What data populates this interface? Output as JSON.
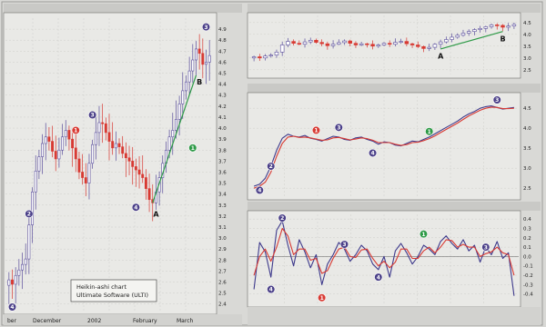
{
  "accent_colors": {
    "up": "#5a4e9c",
    "down": "#d83a33",
    "trendline": "#2e9a47",
    "label_bg": "#4a3f88",
    "label_red": "#d83a33",
    "label_green": "#2e9a47"
  },
  "chart_data": [
    {
      "id": "left",
      "type": "candlestick",
      "legend_box": [
        "Heikin-ashi chart",
        "Ultimate Software (ULTI)"
      ],
      "x_labels": [
        "ber",
        "December",
        "2002",
        "February",
        "March"
      ],
      "y_ticks": [
        2.4,
        2.5,
        2.6,
        2.7,
        2.8,
        2.9,
        3.0,
        3.1,
        3.2,
        3.3,
        3.4,
        3.5,
        3.6,
        3.7,
        3.8,
        3.9,
        4.0,
        4.1,
        4.2,
        4.3,
        4.4,
        4.5,
        4.6,
        4.7,
        4.8,
        4.9
      ],
      "ylim": [
        2.34,
        5.0
      ],
      "grid": true,
      "closes": [
        2.62,
        2.58,
        2.66,
        2.71,
        2.76,
        2.81,
        3.12,
        3.42,
        3.61,
        3.74,
        3.86,
        3.92,
        3.88,
        3.79,
        3.72,
        3.8,
        3.92,
        3.98,
        3.9,
        3.82,
        3.72,
        3.6,
        3.55,
        3.5,
        3.68,
        3.85,
        3.96,
        4.05,
        4.04,
        3.96,
        3.88,
        3.82,
        3.86,
        3.83,
        3.77,
        3.73,
        3.7,
        3.65,
        3.62,
        3.58,
        3.55,
        3.45,
        3.35,
        3.32,
        3.42,
        3.55,
        3.68,
        3.8,
        3.92,
        3.98,
        4.08,
        4.22,
        4.34,
        4.42,
        4.52,
        4.62,
        4.72,
        4.68,
        4.58,
        4.6,
        4.66
      ],
      "markers": [
        {
          "label": "4",
          "color": "purple",
          "i": 1,
          "v": 2.33
        },
        {
          "label": "2",
          "color": "purple",
          "i": 6,
          "v": 3.22
        },
        {
          "label": "1",
          "color": "red",
          "i": 20,
          "v": 3.98
        },
        {
          "label": "3",
          "color": "purple",
          "i": 25,
          "v": 4.12
        },
        {
          "label": "4",
          "color": "purple",
          "i": 38,
          "v": 3.28
        },
        {
          "label": "3",
          "color": "purple",
          "i": 59,
          "v": 4.92
        },
        {
          "label": "1",
          "color": "green",
          "i": 55,
          "v": 3.82
        }
      ],
      "trendline": {
        "from": {
          "i": 43,
          "v": 3.32
        },
        "to": {
          "i": 56,
          "v": 4.48
        }
      },
      "text_labels": [
        {
          "text": "A",
          "i": 44,
          "v": 3.22
        },
        {
          "text": "B",
          "i": 57,
          "v": 4.42
        }
      ]
    },
    {
      "id": "top-right",
      "type": "candlestick",
      "y_ticks": [
        2.5,
        3.0,
        3.5,
        4.0,
        4.5
      ],
      "ylim": [
        2.3,
        4.8
      ],
      "grid": true,
      "closes": [
        3.05,
        3.0,
        3.08,
        3.12,
        3.25,
        3.55,
        3.7,
        3.62,
        3.58,
        3.68,
        3.75,
        3.66,
        3.6,
        3.52,
        3.58,
        3.65,
        3.72,
        3.62,
        3.55,
        3.6,
        3.58,
        3.5,
        3.55,
        3.62,
        3.58,
        3.66,
        3.7,
        3.6,
        3.55,
        3.48,
        3.4,
        3.45,
        3.58,
        3.68,
        3.78,
        3.88,
        3.96,
        4.05,
        4.12,
        4.2,
        4.25,
        4.32,
        4.4,
        4.38,
        4.3,
        4.35,
        4.42
      ],
      "trendline": {
        "from": {
          "i": 33,
          "v": 3.38
        },
        "to": {
          "i": 44,
          "v": 4.12
        }
      },
      "text_labels": [
        {
          "text": "A",
          "i": 33,
          "v": 3.08
        },
        {
          "text": "B",
          "i": 44,
          "v": 3.82
        }
      ]
    },
    {
      "id": "mid-right",
      "type": "line",
      "y_ticks": [
        2.5,
        3.0,
        3.5,
        4.0,
        4.5
      ],
      "ylim": [
        2.3,
        4.8
      ],
      "grid": true,
      "series": [
        {
          "color": "#3e3a8c",
          "values": [
            2.55,
            2.6,
            2.75,
            3.05,
            3.45,
            3.75,
            3.85,
            3.8,
            3.78,
            3.82,
            3.75,
            3.72,
            3.68,
            3.74,
            3.8,
            3.78,
            3.72,
            3.7,
            3.76,
            3.78,
            3.72,
            3.68,
            3.6,
            3.66,
            3.64,
            3.58,
            3.56,
            3.62,
            3.68,
            3.66,
            3.72,
            3.78,
            3.86,
            3.94,
            4.02,
            4.1,
            4.18,
            4.28,
            4.36,
            4.42,
            4.5,
            4.54,
            4.56,
            4.52,
            4.48,
            4.5,
            4.52
          ]
        },
        {
          "color": "#d83a33",
          "values": [
            2.5,
            2.55,
            2.65,
            2.9,
            3.3,
            3.62,
            3.78,
            3.8,
            3.77,
            3.78,
            3.76,
            3.73,
            3.7,
            3.71,
            3.76,
            3.77,
            3.74,
            3.71,
            3.73,
            3.76,
            3.74,
            3.7,
            3.64,
            3.64,
            3.64,
            3.6,
            3.57,
            3.59,
            3.64,
            3.65,
            3.69,
            3.74,
            3.81,
            3.89,
            3.97,
            4.05,
            4.13,
            4.22,
            4.31,
            4.38,
            4.45,
            4.5,
            4.53,
            4.52,
            4.49,
            4.49,
            4.5
          ]
        }
      ],
      "markers": [
        {
          "label": "4",
          "color": "purple",
          "i": 1,
          "v": 2.45
        },
        {
          "label": "2",
          "color": "purple",
          "i": 3,
          "v": 3.05
        },
        {
          "label": "1",
          "color": "red",
          "i": 11,
          "v": 3.95
        },
        {
          "label": "3",
          "color": "purple",
          "i": 15,
          "v": 4.02
        },
        {
          "label": "4",
          "color": "purple",
          "i": 21,
          "v": 3.38
        },
        {
          "label": "1",
          "color": "green",
          "i": 31,
          "v": 3.92
        },
        {
          "label": "3",
          "color": "purple",
          "i": 43,
          "v": 4.72
        }
      ]
    },
    {
      "id": "bottom-right",
      "type": "line",
      "y_ticks": [
        -0.4,
        -0.3,
        -0.2,
        -0.1,
        0.0,
        0.1,
        0.2,
        0.3,
        0.4
      ],
      "ylim": [
        -0.5,
        0.45
      ],
      "grid": true,
      "zero_line": true,
      "series": [
        {
          "color": "#3e3a8c",
          "values": [
            -0.35,
            0.15,
            0.05,
            -0.22,
            0.28,
            0.38,
            0.12,
            -0.1,
            0.18,
            0.05,
            -0.12,
            0.02,
            -0.3,
            -0.08,
            0.02,
            0.15,
            0.08,
            -0.05,
            0.02,
            0.12,
            0.06,
            -0.08,
            -0.14,
            0.0,
            -0.22,
            0.06,
            0.14,
            0.04,
            -0.08,
            0.0,
            0.12,
            0.08,
            0.02,
            0.16,
            0.22,
            0.14,
            0.08,
            0.18,
            0.06,
            0.12,
            -0.06,
            0.1,
            0.02,
            0.16,
            -0.02,
            0.04,
            -0.42
          ]
        },
        {
          "color": "#d83a33",
          "values": [
            -0.2,
            0.0,
            0.08,
            -0.05,
            0.1,
            0.3,
            0.22,
            0.02,
            0.08,
            0.08,
            -0.04,
            -0.02,
            -0.18,
            -0.15,
            -0.02,
            0.08,
            0.1,
            0.0,
            -0.01,
            0.07,
            0.08,
            -0.02,
            -0.1,
            -0.05,
            -0.12,
            -0.06,
            0.08,
            0.08,
            -0.02,
            -0.02,
            0.06,
            0.1,
            0.04,
            0.1,
            0.18,
            0.17,
            0.1,
            0.13,
            0.1,
            0.1,
            0.0,
            0.03,
            0.05,
            0.1,
            0.04,
            0.02,
            -0.2
          ]
        }
      ],
      "markers": [
        {
          "label": "4",
          "color": "purple",
          "i": 3,
          "v": -0.35
        },
        {
          "label": "2",
          "color": "purple",
          "i": 5,
          "v": 0.43
        },
        {
          "label": "1",
          "color": "red",
          "i": 12,
          "v": -0.44
        },
        {
          "label": "3",
          "color": "purple",
          "i": 16,
          "v": 0.13
        },
        {
          "label": "4",
          "color": "purple",
          "i": 22,
          "v": -0.22
        },
        {
          "label": "1",
          "color": "green",
          "i": 30,
          "v": 0.24
        },
        {
          "label": "3",
          "color": "purple",
          "i": 41,
          "v": 0.1
        }
      ]
    }
  ]
}
